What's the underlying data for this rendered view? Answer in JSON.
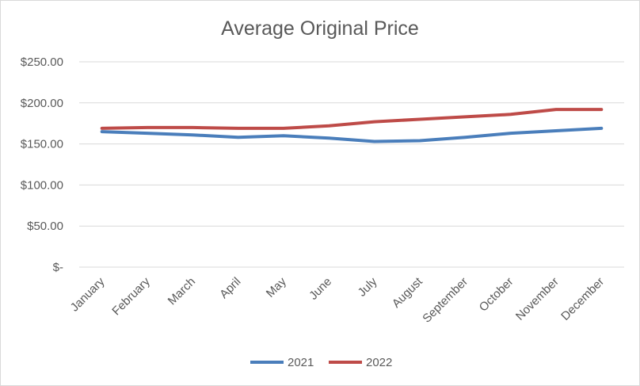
{
  "chart_data": {
    "type": "line",
    "title": "Average Original Price",
    "categories": [
      "January",
      "February",
      "March",
      "April",
      "May",
      "June",
      "July",
      "August",
      "September",
      "October",
      "November",
      "December"
    ],
    "y_tick_labels": [
      "$-",
      "$50.00",
      "$100.00",
      "$150.00",
      "$200.00",
      "$250.00"
    ],
    "y_ticks": [
      0,
      50,
      100,
      150,
      200,
      250
    ],
    "ylim": [
      0,
      250
    ],
    "grid": true,
    "legend_position": "bottom",
    "series": [
      {
        "name": "2021",
        "color": "#4a7ebb",
        "values": [
          165,
          163,
          161,
          158,
          160,
          157,
          153,
          154,
          158,
          163,
          166,
          169
        ]
      },
      {
        "name": "2022",
        "color": "#be4b48",
        "values": [
          169,
          170,
          170,
          169,
          169,
          172,
          177,
          180,
          183,
          186,
          192,
          192
        ]
      }
    ]
  }
}
